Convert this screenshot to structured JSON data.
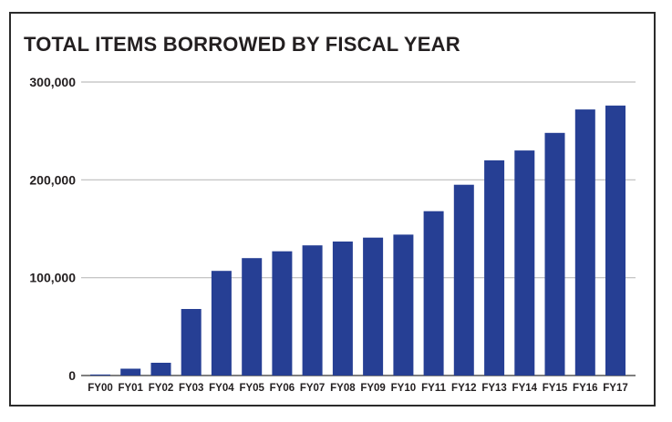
{
  "chart_data": {
    "type": "bar",
    "title": "TOTAL ITEMS BORROWED BY FISCAL YEAR",
    "categories": [
      "FY00",
      "FY01",
      "FY02",
      "FY03",
      "FY04",
      "FY05",
      "FY06",
      "FY07",
      "FY08",
      "FY09",
      "FY10",
      "FY11",
      "FY12",
      "FY13",
      "FY14",
      "FY15",
      "FY16",
      "FY17"
    ],
    "values": [
      1000,
      7000,
      13000,
      68000,
      107000,
      120000,
      127000,
      133000,
      137000,
      141000,
      144000,
      168000,
      195000,
      220000,
      230000,
      248000,
      272000,
      276000
    ],
    "yticks": [
      "0",
      "100,000",
      "200,000",
      "300,000"
    ],
    "ylim": [
      0,
      300000
    ],
    "xlabel": "",
    "ylabel": "",
    "grid": true,
    "bar_color": "#263f94",
    "gridline_color": "#bdbdbd"
  }
}
